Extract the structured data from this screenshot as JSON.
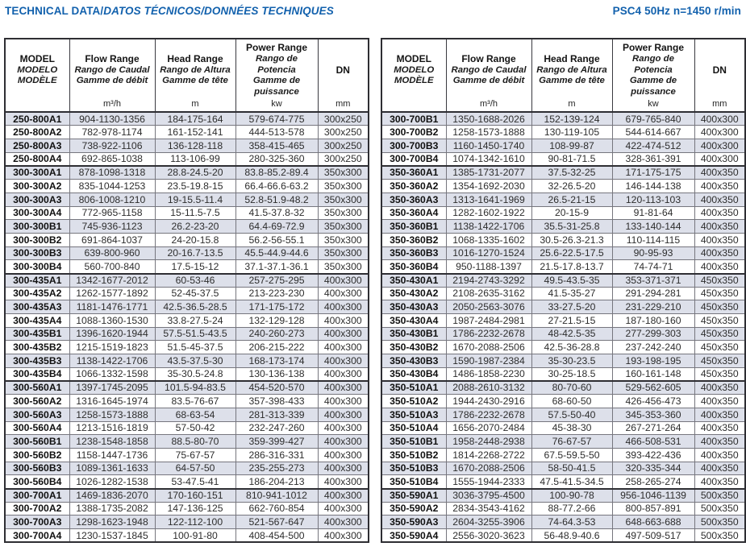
{
  "header": {
    "title_en": "TECHNICAL DATA/",
    "title_intl": "DATOS TÉCNICOS/DONNÉES TECHNIQUES",
    "spec": "PSC4 50Hz  n=1450 r/min"
  },
  "columns": {
    "model": {
      "lines": [
        "MODEL",
        "MODELO",
        "MODÈLE"
      ]
    },
    "flow": {
      "lines": [
        "Flow Range",
        "Rango de Caudal",
        "Gamme de débit"
      ],
      "unit": "m³/h"
    },
    "head": {
      "lines": [
        "Head Range",
        "Rango de Altura",
        "Gamme de tête"
      ],
      "unit": "m"
    },
    "power": {
      "lines": [
        "Power Range",
        "Rango de Potencia",
        "Gamme de puissance"
      ],
      "unit": "kw"
    },
    "dn": {
      "lines": [
        "DN"
      ],
      "unit": "mm"
    }
  },
  "row_fields": [
    "model",
    "flow",
    "head",
    "power",
    "dn"
  ],
  "left_rows": [
    [
      "250-800A1",
      "904-1130-1356",
      "184-175-164",
      "579-674-775",
      "300x250"
    ],
    [
      "250-800A2",
      "782-978-1174",
      "161-152-141",
      "444-513-578",
      "300x250"
    ],
    [
      "250-800A3",
      "738-922-1106",
      "136-128-118",
      "358-415-465",
      "300x250"
    ],
    [
      "250-800A4",
      "692-865-1038",
      "113-106-99",
      "280-325-360",
      "300x250"
    ],
    [
      "300-300A1",
      "878-1098-1318",
      "28.8-24.5-20",
      "83.8-85.2-89.4",
      "350x300"
    ],
    [
      "300-300A2",
      "835-1044-1253",
      "23.5-19.8-15",
      "66.4-66.6-63.2",
      "350x300"
    ],
    [
      "300-300A3",
      "806-1008-1210",
      "19-15.5-11.4",
      "52.8-51.9-48.2",
      "350x300"
    ],
    [
      "300-300A4",
      "772-965-1158",
      "15-11.5-7.5",
      "41.5-37.8-32",
      "350x300"
    ],
    [
      "300-300B1",
      "745-936-1123",
      "26.2-23-20",
      "64.4-69-72.9",
      "350x300"
    ],
    [
      "300-300B2",
      "691-864-1037",
      "24-20-15.8",
      "56.2-56-55.1",
      "350x300"
    ],
    [
      "300-300B3",
      "639-800-960",
      "20-16.7-13.5",
      "45.5-44.9-44.6",
      "350x300"
    ],
    [
      "300-300B4",
      "560-700-840",
      "17.5-15-12",
      "37.1-37.1-36.1",
      "350x300"
    ],
    [
      "300-435A1",
      "1342-1677-2012",
      "60-53-46",
      "257-275-295",
      "400x300"
    ],
    [
      "300-435A2",
      "1262-1577-1892",
      "52-45-37.5",
      "213-223-230",
      "400x300"
    ],
    [
      "300-435A3",
      "1181-1476-1771",
      "42.5-36.5-28.5",
      "171-175-172",
      "400x300"
    ],
    [
      "300-435A4",
      "1088-1360-1530",
      "33.8-27.5-24",
      "132-129-128",
      "400x300"
    ],
    [
      "300-435B1",
      "1396-1620-1944",
      "57.5-51.5-43.5",
      "240-260-273",
      "400x300"
    ],
    [
      "300-435B2",
      "1215-1519-1823",
      "51.5-45-37.5",
      "206-215-222",
      "400x300"
    ],
    [
      "300-435B3",
      "1138-1422-1706",
      "43.5-37.5-30",
      "168-173-174",
      "400x300"
    ],
    [
      "300-435B4",
      "1066-1332-1598",
      "35-30.5-24.8",
      "130-136-138",
      "400x300"
    ],
    [
      "300-560A1",
      "1397-1745-2095",
      "101.5-94-83.5",
      "454-520-570",
      "400x300"
    ],
    [
      "300-560A2",
      "1316-1645-1974",
      "83.5-76-67",
      "357-398-433",
      "400x300"
    ],
    [
      "300-560A3",
      "1258-1573-1888",
      "68-63-54",
      "281-313-339",
      "400x300"
    ],
    [
      "300-560A4",
      "1213-1516-1819",
      "57-50-42",
      "232-247-260",
      "400x300"
    ],
    [
      "300-560B1",
      "1238-1548-1858",
      "88.5-80-70",
      "359-399-427",
      "400x300"
    ],
    [
      "300-560B2",
      "1158-1447-1736",
      "75-67-57",
      "286-316-331",
      "400x300"
    ],
    [
      "300-560B3",
      "1089-1361-1633",
      "64-57-50",
      "235-255-273",
      "400x300"
    ],
    [
      "300-560B4",
      "1026-1282-1538",
      "53-47.5-41",
      "186-204-213",
      "400x300"
    ],
    [
      "300-700A1",
      "1469-1836-2070",
      "170-160-151",
      "810-941-1012",
      "400x300"
    ],
    [
      "300-700A2",
      "1388-1735-2082",
      "147-136-125",
      "662-760-854",
      "400x300"
    ],
    [
      "300-700A3",
      "1298-1623-1948",
      "122-112-100",
      "521-567-647",
      "400x300"
    ],
    [
      "300-700A4",
      "1230-1537-1845",
      "100-91-80",
      "408-454-500",
      "400x300"
    ]
  ],
  "right_rows": [
    [
      "300-700B1",
      "1350-1688-2026",
      "152-139-124",
      "679-765-840",
      "400x300"
    ],
    [
      "300-700B2",
      "1258-1573-1888",
      "130-119-105",
      "544-614-667",
      "400x300"
    ],
    [
      "300-700B3",
      "1160-1450-1740",
      "108-99-87",
      "422-474-512",
      "400x300"
    ],
    [
      "300-700B4",
      "1074-1342-1610",
      "90-81-71.5",
      "328-361-391",
      "400x300"
    ],
    [
      "350-360A1",
      "1385-1731-2077",
      "37.5-32-25",
      "171-175-175",
      "400x350"
    ],
    [
      "350-360A2",
      "1354-1692-2030",
      "32-26.5-20",
      "146-144-138",
      "400x350"
    ],
    [
      "350-360A3",
      "1313-1641-1969",
      "26.5-21-15",
      "120-113-103",
      "400x350"
    ],
    [
      "350-360A4",
      "1282-1602-1922",
      "20-15-9",
      "91-81-64",
      "400x350"
    ],
    [
      "350-360B1",
      "1138-1422-1706",
      "35.5-31-25.8",
      "133-140-144",
      "400x350"
    ],
    [
      "350-360B2",
      "1068-1335-1602",
      "30.5-26.3-21.3",
      "110-114-115",
      "400x350"
    ],
    [
      "350-360B3",
      "1016-1270-1524",
      "25.6-22.5-17.5",
      "90-95-93",
      "400x350"
    ],
    [
      "350-360B4",
      "950-1188-1397",
      "21.5-17.8-13.7",
      "74-74-71",
      "400x350"
    ],
    [
      "350-430A1",
      "2194-2743-3292",
      "49.5-43.5-35",
      "353-371-371",
      "450x350"
    ],
    [
      "350-430A2",
      "2108-2635-3162",
      "41.5-35-27",
      "291-294-281",
      "450x350"
    ],
    [
      "350-430A3",
      "2050-2563-3076",
      "33-27.5-20",
      "231-229-210",
      "450x350"
    ],
    [
      "350-430A4",
      "1987-2484-2981",
      "27-21.5-15",
      "187-180-160",
      "450x350"
    ],
    [
      "350-430B1",
      "1786-2232-2678",
      "48-42.5-35",
      "277-299-303",
      "450x350"
    ],
    [
      "350-430B2",
      "1670-2088-2506",
      "42.5-36-28.8",
      "237-242-240",
      "450x350"
    ],
    [
      "350-430B3",
      "1590-1987-2384",
      "35-30-23.5",
      "193-198-195",
      "450x350"
    ],
    [
      "350-430B4",
      "1486-1858-2230",
      "30-25-18.5",
      "160-161-148",
      "450x350"
    ],
    [
      "350-510A1",
      "2088-2610-3132",
      "80-70-60",
      "529-562-605",
      "400x350"
    ],
    [
      "350-510A2",
      "1944-2430-2916",
      "68-60-50",
      "426-456-473",
      "400x350"
    ],
    [
      "350-510A3",
      "1786-2232-2678",
      "57.5-50-40",
      "345-353-360",
      "400x350"
    ],
    [
      "350-510A4",
      "1656-2070-2484",
      "45-38-30",
      "267-271-264",
      "400x350"
    ],
    [
      "350-510B1",
      "1958-2448-2938",
      "76-67-57",
      "466-508-531",
      "400x350"
    ],
    [
      "350-510B2",
      "1814-2268-2722",
      "67.5-59.5-50",
      "393-422-436",
      "400x350"
    ],
    [
      "350-510B3",
      "1670-2088-2506",
      "58-50-41.5",
      "320-335-344",
      "400x350"
    ],
    [
      "350-510B4",
      "1555-1944-2333",
      "47.5-41.5-34.5",
      "258-265-274",
      "400x350"
    ],
    [
      "350-590A1",
      "3036-3795-4500",
      "100-90-78",
      "956-1046-1139",
      "500x350"
    ],
    [
      "350-590A2",
      "2834-3543-4162",
      "88-77.2-66",
      "800-857-891",
      "500x350"
    ],
    [
      "350-590A3",
      "2604-3255-3906",
      "74-64.3-53",
      "648-663-688",
      "500x350"
    ],
    [
      "350-590A4",
      "2556-3020-3623",
      "56-48.9-40.6",
      "497-509-517",
      "500x350"
    ]
  ]
}
